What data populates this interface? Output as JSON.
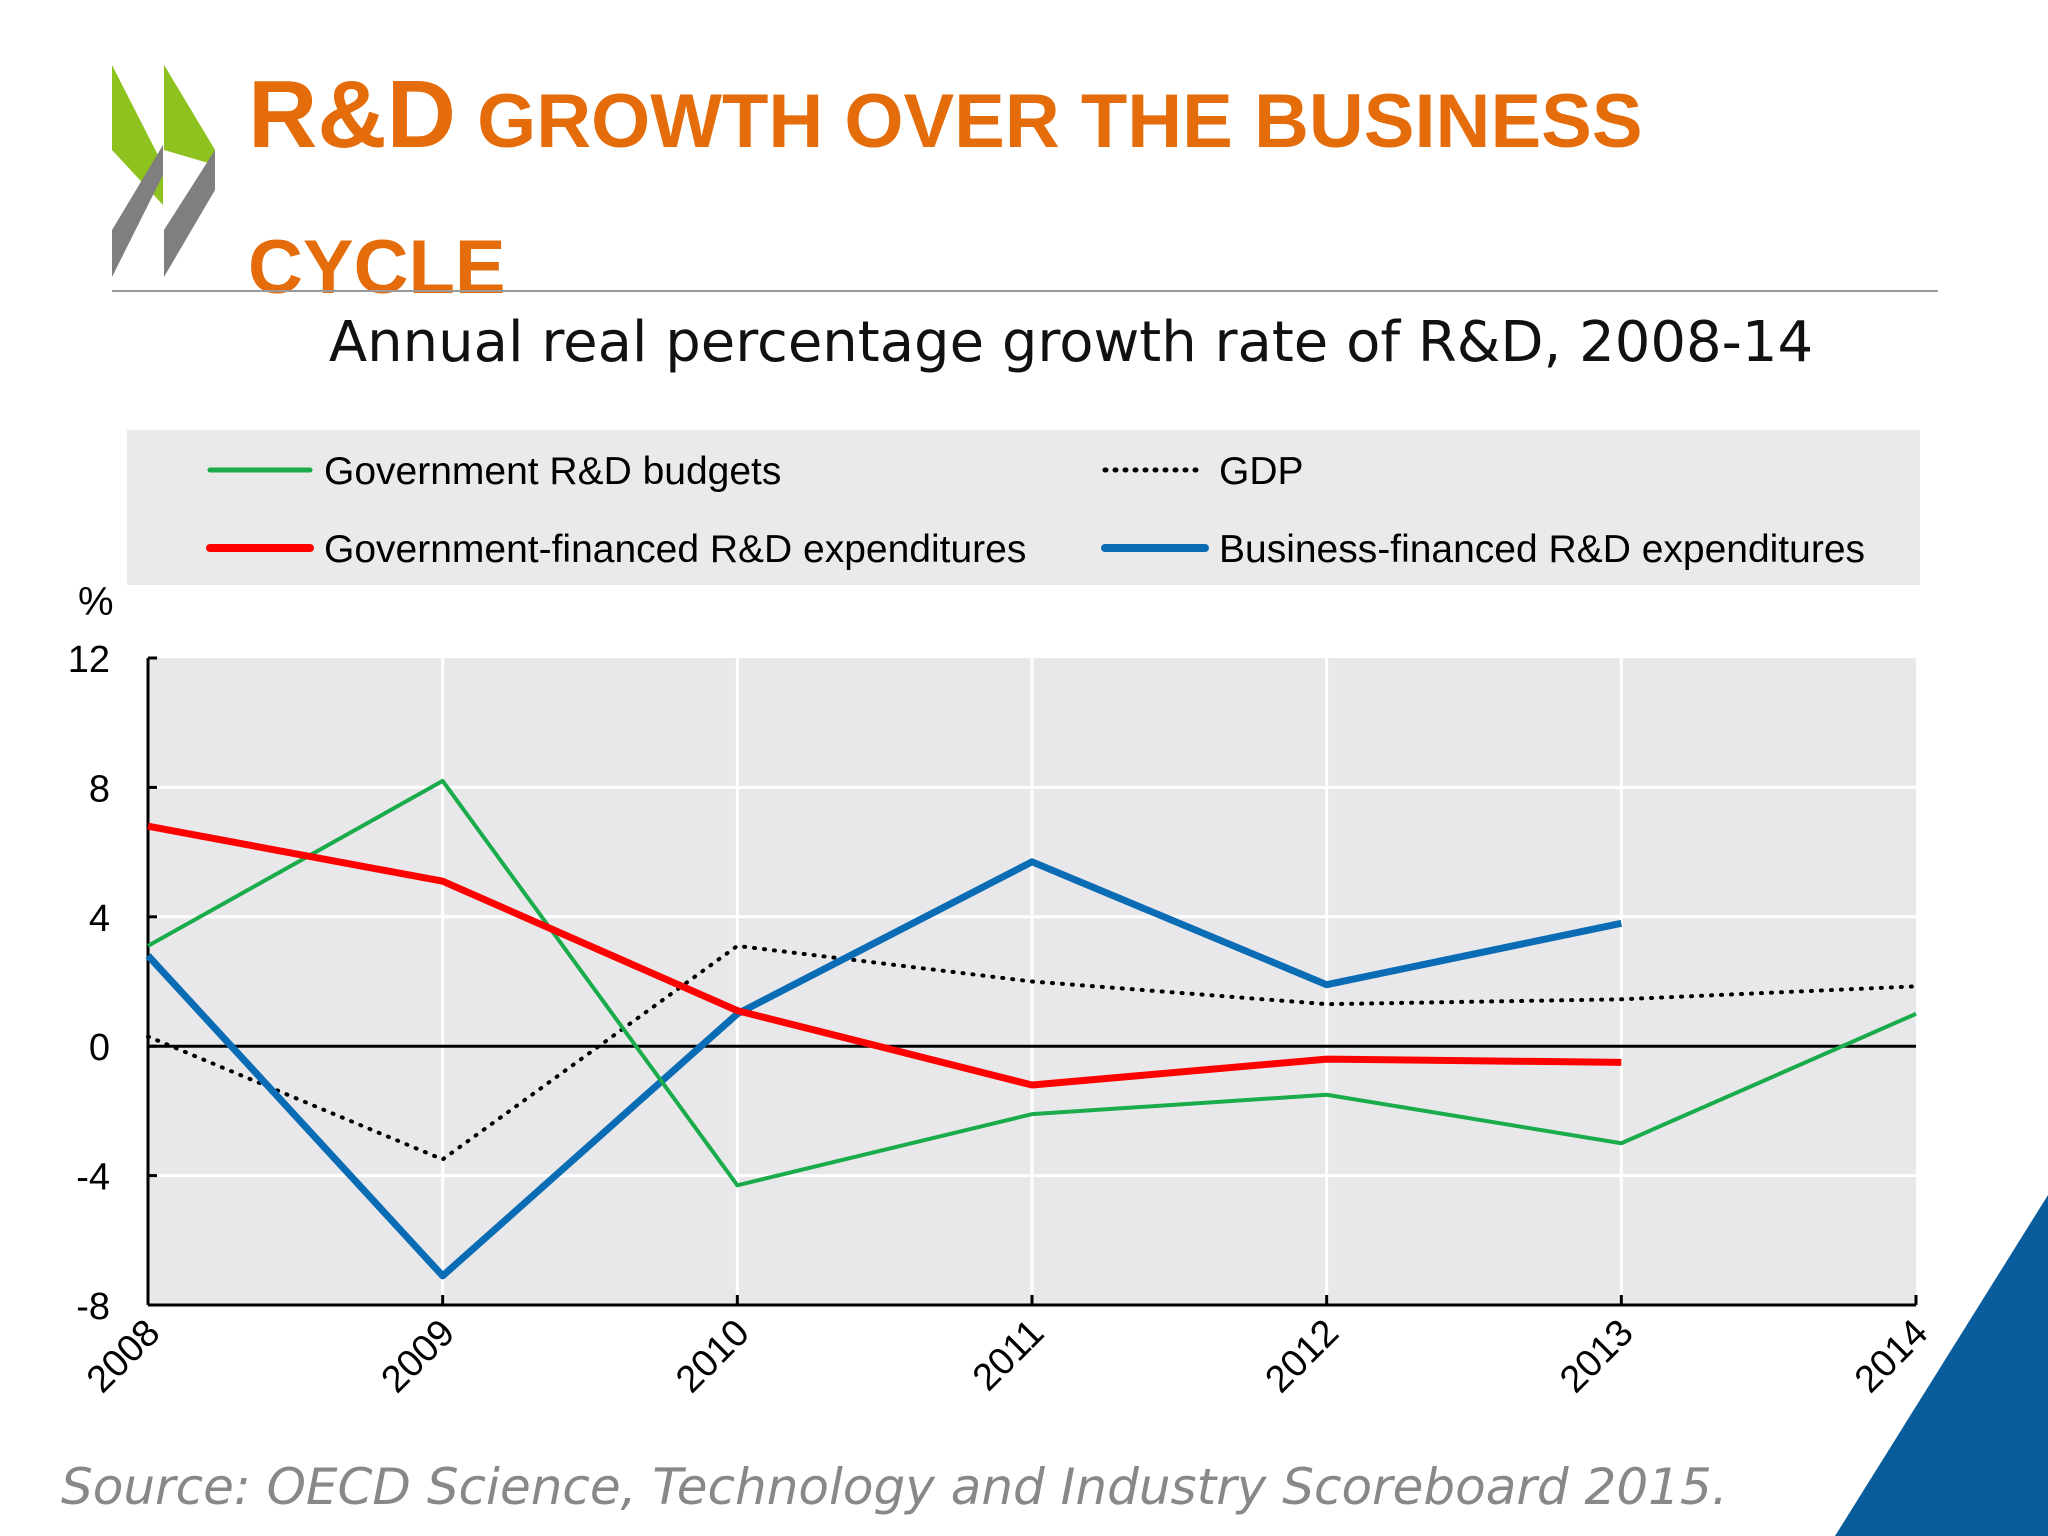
{
  "header": {
    "title_big": "R&D",
    "title_rest": " GROWTH OVER THE BUSINESS CYCLE"
  },
  "brand": {
    "logo_colors": {
      "green": "#8dc21f",
      "gray": "#7f7f7f"
    },
    "accent_triangle": "#0a5d9c"
  },
  "source": "Source: OECD Science, Technology and Industry Scoreboard 2015.",
  "chart_data": {
    "type": "line",
    "title": "Annual real percentage growth rate of R&D, 2008-14",
    "ylabel": "%",
    "xlabel": "",
    "x": [
      "2008",
      "2009",
      "2010",
      "2011",
      "2012",
      "2013",
      "2014"
    ],
    "ylim": [
      -8,
      12
    ],
    "yticks": [
      -8,
      -4,
      0,
      4,
      8,
      12
    ],
    "grid": true,
    "legend_placement": "top",
    "series": [
      {
        "name": "Government R&D budgets",
        "color": "#1aab4b",
        "style": "solid-thin",
        "values": [
          3.1,
          8.2,
          -4.3,
          -2.1,
          -1.5,
          -3.0,
          1.0
        ]
      },
      {
        "name": "GDP",
        "color": "#000000",
        "style": "dotted",
        "values": [
          0.3,
          -3.5,
          3.1,
          2.0,
          1.3,
          1.45,
          1.85
        ]
      },
      {
        "name": "Government-financed R&D expenditures",
        "color": "#ff0000",
        "style": "solid-thick",
        "values": [
          6.8,
          5.1,
          1.1,
          -1.2,
          -0.4,
          -0.5,
          null
        ]
      },
      {
        "name": "Business-financed R&D expenditures",
        "color": "#0a6cb5",
        "style": "solid-thick",
        "values": [
          2.8,
          -7.1,
          1.0,
          5.7,
          1.9,
          3.8,
          null
        ]
      }
    ]
  }
}
